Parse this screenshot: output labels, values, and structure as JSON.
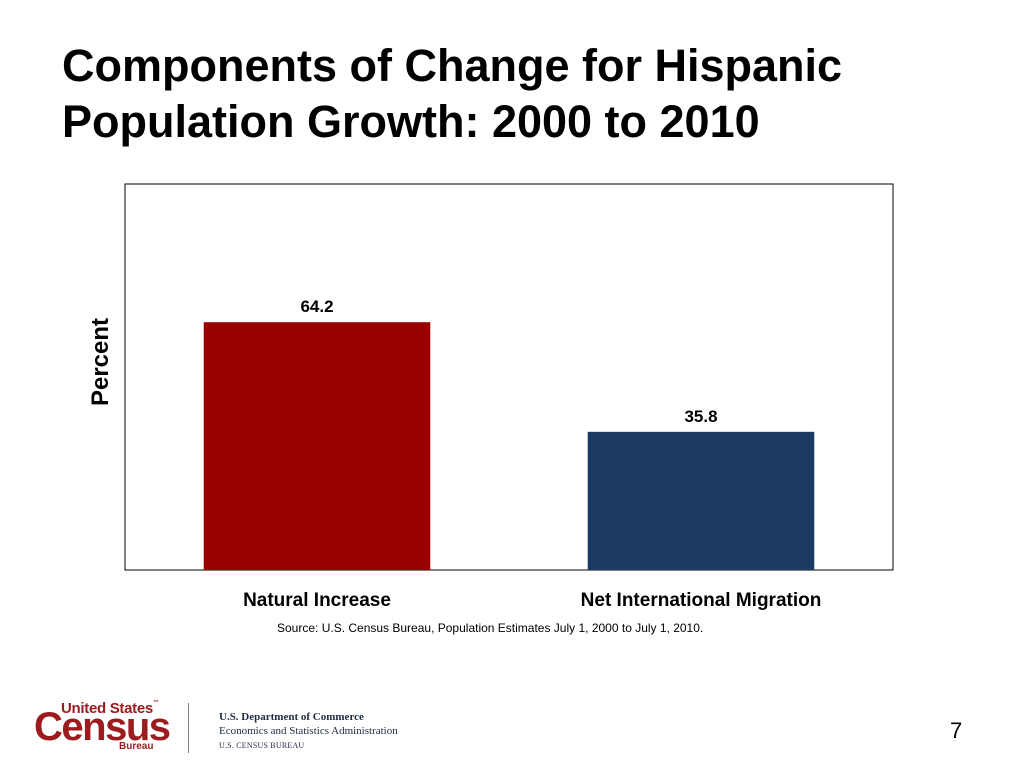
{
  "slide": {
    "title_line1": "Components of Change for Hispanic",
    "title_line2": "Population Growth: 2000 to 2010",
    "source": "Source: U.S. Census Bureau, Population Estimates July 1, 2000 to July 1, 2010.",
    "page_number": "7"
  },
  "footer": {
    "logo_united_states": "United States",
    "logo_tm": "™",
    "logo_census": "Census",
    "logo_bureau": "Bureau",
    "dept_line1": "U.S. Department of Commerce",
    "dept_line2": "Economics and Statistics Administration",
    "dept_line3": "U.S. CENSUS BUREAU"
  },
  "colors": {
    "natural_increase": "#990000",
    "net_international_migration": "#1b3a62",
    "brand_red": "#9b1b1f"
  },
  "chart_data": {
    "type": "bar",
    "title": "Components of Change for Hispanic Population Growth: 2000 to 2010",
    "categories": [
      "Natural Increase",
      "Net International Migration"
    ],
    "values": [
      64.2,
      35.8
    ],
    "value_labels": [
      "64.2",
      "35.8"
    ],
    "xlabel": "",
    "ylabel": "Percent",
    "ylim": [
      0,
      100
    ],
    "grid": false,
    "legend": "none"
  }
}
